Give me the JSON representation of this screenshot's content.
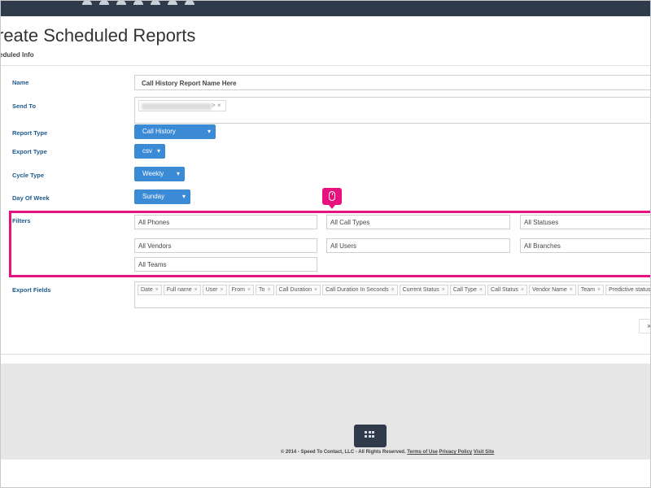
{
  "header": {
    "nav_icons": 7
  },
  "page": {
    "title": "reate Scheduled Reports",
    "subtitle": "eduled Info"
  },
  "form": {
    "name": {
      "label": "Name",
      "value": "Call History Report Name Here"
    },
    "send_to": {
      "label": "Send To",
      "recipient_suffix": ">",
      "remove": "×"
    },
    "report_type": {
      "label": "Report Type",
      "value": "Call History"
    },
    "export_type": {
      "label": "Export Type",
      "value": "csv"
    },
    "cycle_type": {
      "label": "Cycle Type",
      "value": "Weekly"
    },
    "day_of_week": {
      "label": "Day Of Week",
      "value": "Sunday"
    },
    "filters": {
      "label": "Filters",
      "phones": "All Phones",
      "call_types": "All Call Types",
      "statuses": "All Statuses",
      "vendors": "All Vendors",
      "users": "All Users",
      "branches": "All Branches",
      "teams": "All Teams"
    },
    "export_fields": {
      "label": "Export Fields",
      "chips": [
        "Date",
        "Full name",
        "User",
        "From",
        "To",
        "Call Duration",
        "Call Duration In Seconds",
        "Current Status",
        "Call Type",
        "Call Status",
        "Vendor Name",
        "Team",
        "Predictive status"
      ]
    }
  },
  "caret": "▾",
  "close_symbol": "×",
  "footer": {
    "text": "© 2014 - Speed To Contact, LLC - All Rights Reserved.",
    "terms": "Terms of Use",
    "privacy": "Privacy Policy",
    "visit": "Visit Site"
  },
  "colors": {
    "accent": "#3a8ad6",
    "highlight": "#e8127f",
    "label": "#1d5a8d",
    "topbar": "#2f3a4b"
  }
}
